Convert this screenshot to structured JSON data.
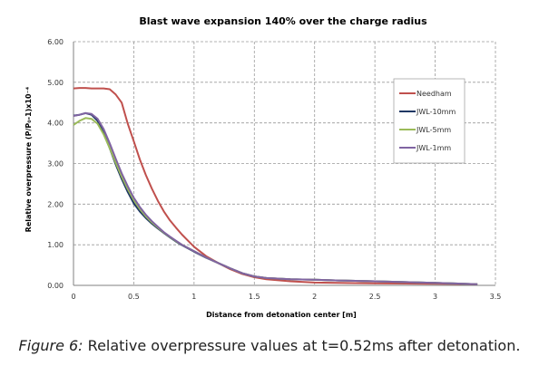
{
  "chart_data": {
    "type": "line",
    "title": "Blast wave expansion 140% over the charge radius",
    "xlabel": "Distance from detonation center [m]",
    "ylabel": "Relative overpressure  (P/P₀-1)x10⁻⁴",
    "xlim": [
      0,
      3.5
    ],
    "ylim": [
      0,
      6
    ],
    "x_ticks": [
      "0",
      "0.5",
      "1",
      "1.5",
      "2",
      "2.5",
      "3",
      "3.5"
    ],
    "y_ticks": [
      "0.00",
      "1.00",
      "2.00",
      "3.00",
      "4.00",
      "5.00",
      "6.00"
    ],
    "grid": "dashed",
    "legend_position": "right",
    "series": [
      {
        "name": "Needham",
        "color": "#c0504d",
        "points": [
          [
            0,
            4.85
          ],
          [
            0.05,
            4.86
          ],
          [
            0.1,
            4.86
          ],
          [
            0.15,
            4.85
          ],
          [
            0.2,
            4.85
          ],
          [
            0.25,
            4.85
          ],
          [
            0.3,
            4.83
          ],
          [
            0.35,
            4.7
          ],
          [
            0.4,
            4.5
          ],
          [
            0.45,
            3.98
          ],
          [
            0.5,
            3.55
          ],
          [
            0.55,
            3.1
          ],
          [
            0.6,
            2.72
          ],
          [
            0.65,
            2.38
          ],
          [
            0.7,
            2.08
          ],
          [
            0.75,
            1.82
          ],
          [
            0.8,
            1.6
          ],
          [
            0.85,
            1.42
          ],
          [
            0.9,
            1.25
          ],
          [
            0.95,
            1.1
          ],
          [
            1.0,
            0.95
          ],
          [
            1.1,
            0.72
          ],
          [
            1.2,
            0.55
          ],
          [
            1.3,
            0.4
          ],
          [
            1.4,
            0.28
          ],
          [
            1.5,
            0.2
          ],
          [
            1.6,
            0.15
          ],
          [
            1.8,
            0.1
          ],
          [
            2.0,
            0.07
          ],
          [
            2.5,
            0.05
          ],
          [
            3.0,
            0.04
          ],
          [
            3.35,
            0.03
          ]
        ]
      },
      {
        "name": "JWL-10mm",
        "color": "#1f3864",
        "points": [
          [
            0,
            4.18
          ],
          [
            0.05,
            4.2
          ],
          [
            0.1,
            4.24
          ],
          [
            0.15,
            4.2
          ],
          [
            0.2,
            4.05
          ],
          [
            0.25,
            3.75
          ],
          [
            0.3,
            3.38
          ],
          [
            0.35,
            2.98
          ],
          [
            0.4,
            2.62
          ],
          [
            0.45,
            2.3
          ],
          [
            0.5,
            2.02
          ],
          [
            0.55,
            1.82
          ],
          [
            0.6,
            1.66
          ],
          [
            0.65,
            1.52
          ],
          [
            0.7,
            1.4
          ],
          [
            0.75,
            1.29
          ],
          [
            0.8,
            1.18
          ],
          [
            0.85,
            1.08
          ],
          [
            0.9,
            0.99
          ],
          [
            1.0,
            0.83
          ],
          [
            1.1,
            0.68
          ],
          [
            1.2,
            0.55
          ],
          [
            1.3,
            0.42
          ],
          [
            1.4,
            0.3
          ],
          [
            1.5,
            0.22
          ],
          [
            1.6,
            0.18
          ],
          [
            1.8,
            0.15
          ],
          [
            2.0,
            0.14
          ],
          [
            2.2,
            0.12
          ],
          [
            2.5,
            0.1
          ],
          [
            3.0,
            0.06
          ],
          [
            3.35,
            0.03
          ]
        ]
      },
      {
        "name": "JWL-5mm",
        "color": "#9bbb59",
        "points": [
          [
            0,
            3.95
          ],
          [
            0.05,
            4.05
          ],
          [
            0.1,
            4.12
          ],
          [
            0.15,
            4.1
          ],
          [
            0.2,
            3.98
          ],
          [
            0.25,
            3.72
          ],
          [
            0.3,
            3.38
          ],
          [
            0.35,
            3.02
          ],
          [
            0.4,
            2.68
          ],
          [
            0.45,
            2.37
          ],
          [
            0.5,
            2.1
          ],
          [
            0.55,
            1.88
          ],
          [
            0.6,
            1.7
          ],
          [
            0.65,
            1.55
          ],
          [
            0.7,
            1.42
          ],
          [
            0.75,
            1.3
          ],
          [
            0.8,
            1.19
          ],
          [
            0.85,
            1.09
          ],
          [
            0.9,
            1.0
          ],
          [
            1.0,
            0.84
          ],
          [
            1.1,
            0.69
          ],
          [
            1.2,
            0.55
          ],
          [
            1.3,
            0.42
          ],
          [
            1.4,
            0.3
          ],
          [
            1.5,
            0.22
          ],
          [
            1.6,
            0.18
          ],
          [
            1.8,
            0.15
          ],
          [
            2.0,
            0.14
          ],
          [
            2.2,
            0.12
          ],
          [
            2.5,
            0.1
          ],
          [
            3.0,
            0.06
          ],
          [
            3.35,
            0.03
          ]
        ]
      },
      {
        "name": "JWL-1mm",
        "color": "#8064a2",
        "points": [
          [
            0,
            4.17
          ],
          [
            0.05,
            4.2
          ],
          [
            0.1,
            4.24
          ],
          [
            0.15,
            4.22
          ],
          [
            0.2,
            4.1
          ],
          [
            0.25,
            3.85
          ],
          [
            0.3,
            3.5
          ],
          [
            0.35,
            3.12
          ],
          [
            0.4,
            2.76
          ],
          [
            0.45,
            2.44
          ],
          [
            0.5,
            2.16
          ],
          [
            0.55,
            1.93
          ],
          [
            0.6,
            1.74
          ],
          [
            0.65,
            1.58
          ],
          [
            0.7,
            1.44
          ],
          [
            0.75,
            1.31
          ],
          [
            0.8,
            1.2
          ],
          [
            0.85,
            1.1
          ],
          [
            0.9,
            1.0
          ],
          [
            1.0,
            0.84
          ],
          [
            1.1,
            0.69
          ],
          [
            1.2,
            0.55
          ],
          [
            1.3,
            0.42
          ],
          [
            1.4,
            0.3
          ],
          [
            1.5,
            0.22
          ],
          [
            1.6,
            0.18
          ],
          [
            1.8,
            0.15
          ],
          [
            2.0,
            0.14
          ],
          [
            2.2,
            0.12
          ],
          [
            2.5,
            0.1
          ],
          [
            3.0,
            0.06
          ],
          [
            3.35,
            0.03
          ]
        ]
      }
    ]
  },
  "caption": {
    "label": "Figure 6:",
    "text": " Relative overpressure values at t=0.52ms after detonation."
  }
}
